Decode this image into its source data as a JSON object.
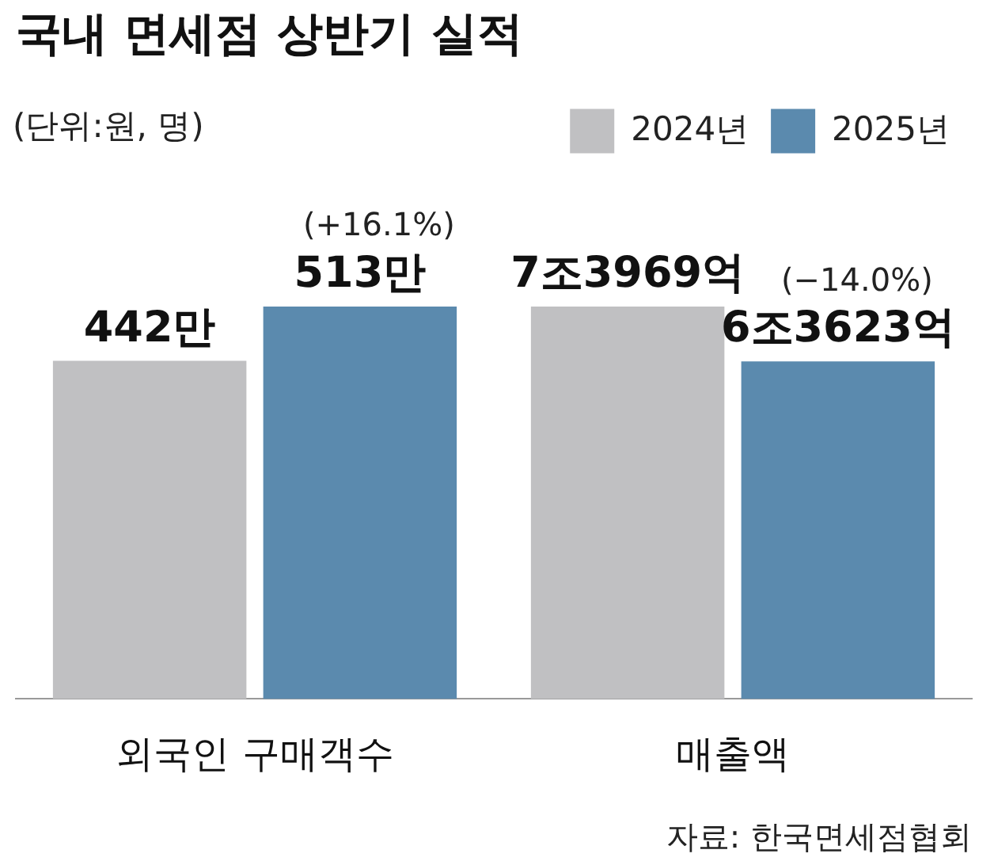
{
  "chart_data": {
    "type": "bar",
    "title": "국내 면세점 상반기 실적",
    "subtitle": "(단위:원, 명)",
    "categories": [
      "외국인 구매객수",
      "매출액"
    ],
    "legend": "top right",
    "tick_labels": "x",
    "series": [
      {
        "name": "2024년",
        "color": "#c0c0c2",
        "values": [
          442,
          null
        ],
        "value_labels": [
          "442만",
          null
        ]
      },
      {
        "name": "2025년",
        "color": "#5b8aae",
        "values": [
          513,
          null
        ],
        "value_labels": [
          "513만",
          null
        ]
      },
      {
        "color": "#c0c0c2",
        "axis": "y2",
        "values": [
          null,
          7.3969
        ],
        "value_labels": [
          null,
          "7조3969억"
        ]
      },
      {
        "color": "#5b8aae",
        "axis": "y2",
        "values": [
          null,
          6.3623
        ],
        "value_labels": [
          null,
          "6조3623억"
        ]
      }
    ],
    "annotations": [
      "(+16.1%)",
      "(−14.0%)",
      "자료: 한국면세점협회"
    ]
  }
}
